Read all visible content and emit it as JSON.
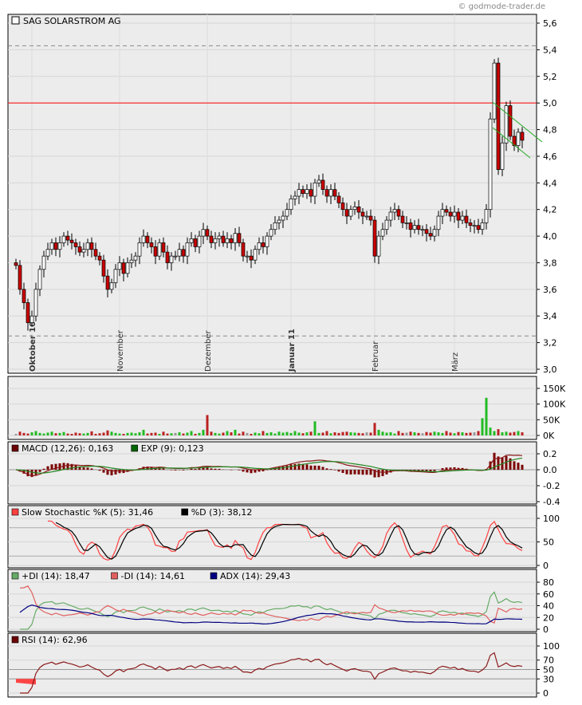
{
  "copyright": "© godmode-trader.de",
  "title": "SAG SOLARSTROM AG",
  "chart_data": [
    {
      "type": "candlestick",
      "title": "SAG SOLARSTROM AG",
      "ylim": [
        3.0,
        5.6
      ],
      "yticks": [
        "3,0",
        "3,2",
        "3,4",
        "3,6",
        "3,8",
        "4,0",
        "4,2",
        "4,4",
        "4,6",
        "4,8",
        "5,0",
        "5,2",
        "5,4",
        "5,6"
      ],
      "months": [
        {
          "label": "Oktober 10",
          "bold": true,
          "index": 4
        },
        {
          "label": "November",
          "bold": false,
          "index": 26
        },
        {
          "label": "Dezember",
          "bold": false,
          "index": 48
        },
        {
          "label": "Januar 11",
          "bold": true,
          "index": 69
        },
        {
          "label": "Februar",
          "bold": false,
          "index": 90
        },
        {
          "label": "März",
          "bold": false,
          "index": 110
        }
      ],
      "close": [
        3.78,
        3.6,
        3.5,
        3.35,
        3.4,
        3.6,
        3.75,
        3.85,
        3.9,
        3.95,
        3.9,
        3.95,
        4.0,
        3.97,
        3.95,
        3.92,
        3.88,
        3.9,
        3.95,
        3.9,
        3.85,
        3.82,
        3.7,
        3.6,
        3.65,
        3.75,
        3.8,
        3.72,
        3.8,
        3.82,
        3.85,
        3.95,
        4.0,
        3.95,
        3.92,
        3.85,
        3.95,
        3.88,
        3.8,
        3.85,
        3.85,
        3.9,
        3.85,
        3.95,
        3.98,
        3.92,
        4.0,
        4.05,
        4.0,
        3.95,
        3.98,
        4.0,
        3.95,
        3.98,
        3.95,
        4.02,
        3.95,
        3.85,
        3.85,
        3.82,
        3.9,
        3.95,
        3.92,
        4.0,
        4.05,
        4.1,
        4.12,
        4.15,
        4.2,
        4.28,
        4.3,
        4.35,
        4.32,
        4.35,
        4.3,
        4.4,
        4.42,
        4.35,
        4.3,
        4.35,
        4.3,
        4.25,
        4.2,
        4.15,
        4.2,
        4.22,
        4.18,
        4.15,
        4.15,
        4.12,
        3.85,
        4.0,
        4.05,
        4.12,
        4.18,
        4.2,
        4.15,
        4.1,
        4.1,
        4.05,
        4.08,
        4.05,
        4.05,
        4.02,
        4.0,
        4.05,
        4.15,
        4.2,
        4.18,
        4.15,
        4.18,
        4.12,
        4.15,
        4.1,
        4.08,
        4.08,
        4.05,
        4.1,
        4.2,
        4.88,
        5.3,
        4.5,
        4.7,
        4.98,
        4.75,
        4.68,
        4.78,
        4.72
      ],
      "reference_lines": {
        "resistance": 5.0,
        "dashed_high": 5.43,
        "dashed_low": 3.25
      }
    },
    {
      "type": "bar",
      "yticks": [
        "0K",
        "50K",
        "100K",
        "150K"
      ],
      "ylim": [
        0,
        160
      ],
      "values": [
        5,
        12,
        8,
        6,
        10,
        14,
        8,
        6,
        9,
        12,
        7,
        8,
        11,
        6,
        5,
        9,
        7,
        6,
        8,
        13,
        5,
        7,
        9,
        16,
        12,
        8,
        6,
        5,
        8,
        9,
        7,
        10,
        18,
        6,
        8,
        9,
        5,
        12,
        6,
        7,
        8,
        10,
        6,
        9,
        14,
        5,
        8,
        18,
        65,
        12,
        8,
        6,
        9,
        14,
        10,
        18,
        6,
        12,
        8,
        5,
        9,
        7,
        14,
        8,
        10,
        6,
        12,
        9,
        11,
        8,
        14,
        9,
        7,
        10,
        12,
        45,
        8,
        9,
        14,
        7,
        10,
        8,
        11,
        12,
        10,
        9,
        8,
        7,
        10,
        9,
        40,
        18,
        12,
        9,
        10,
        6,
        14,
        8,
        9,
        12,
        10,
        8,
        7,
        11,
        9,
        12,
        10,
        8,
        14,
        9,
        7,
        11,
        10,
        8,
        9,
        10,
        14,
        55,
        120,
        25,
        14,
        20,
        10,
        12,
        9,
        11,
        14,
        10
      ]
    },
    {
      "type": "line",
      "legend": [
        {
          "label": "MACD (12,26): 0,163",
          "color": "#6b0000"
        },
        {
          "label": "EXP (9): 0,123",
          "color": "#006400"
        }
      ],
      "yticks": [
        "0.2",
        "0.0",
        "-0.2",
        "-0.4"
      ],
      "ylim": [
        -0.45,
        0.3
      ]
    },
    {
      "type": "line",
      "legend": [
        {
          "label": "Slow Stochastic %K (5): 31,46",
          "color": "#ff4040"
        },
        {
          "label": "%D (3): 38,12",
          "color": "#000000"
        }
      ],
      "yticks": [
        "100",
        "50",
        "0"
      ],
      "ylim": [
        0,
        100
      ]
    },
    {
      "type": "line",
      "legend": [
        {
          "label": "+DI (14): 18,47",
          "color": "#66aa66"
        },
        {
          "label": "-DI (14): 14,61",
          "color": "#e06060"
        },
        {
          "label": "ADX (14): 29,43",
          "color": "#000080"
        }
      ],
      "yticks": [
        "80",
        "60",
        "40",
        "20",
        "0"
      ],
      "ylim": [
        0,
        80
      ]
    },
    {
      "type": "line",
      "legend": [
        {
          "label": "RSI (14): 62,96",
          "color": "#6b0000"
        }
      ],
      "yticks": [
        "100",
        "70",
        "50",
        "30",
        "0"
      ],
      "ylim": [
        0,
        100
      ]
    }
  ],
  "colors": {
    "up": "#ffffff",
    "down": "#cc0000",
    "vol_up": "#22bb22",
    "vol_down": "#bb2222",
    "resistance": "#ff0000",
    "channel": "#22aa22",
    "panel_bg": "#ececec"
  }
}
